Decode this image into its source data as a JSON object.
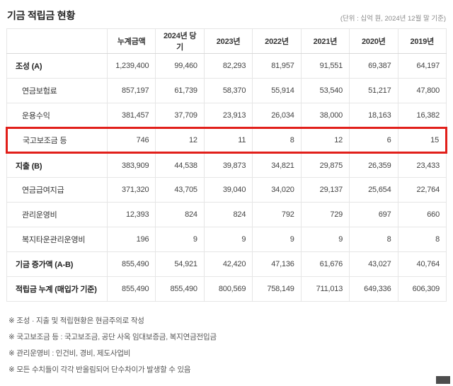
{
  "page": {
    "title": "기금 적립금 현황",
    "unit_note": "(단위 : 십억 원, 2024년 12월 말 기준)",
    "highlight_color": "#e11f1a"
  },
  "table": {
    "columns": [
      "",
      "누계금액",
      "2024년 당기",
      "2023년",
      "2022년",
      "2021년",
      "2020년",
      "2019년"
    ],
    "rows": [
      {
        "label": "조성 (A)",
        "style": "section",
        "highlighted": false,
        "values": [
          "1,239,400",
          "99,460",
          "82,293",
          "81,957",
          "91,551",
          "69,387",
          "64,197"
        ]
      },
      {
        "label": "연금보험료",
        "style": "sub",
        "highlighted": false,
        "values": [
          "857,197",
          "61,739",
          "58,370",
          "55,914",
          "53,540",
          "51,217",
          "47,800"
        ]
      },
      {
        "label": "운용수익",
        "style": "sub",
        "highlighted": false,
        "values": [
          "381,457",
          "37,709",
          "23,913",
          "26,034",
          "38,000",
          "18,163",
          "16,382"
        ]
      },
      {
        "label": "국고보조금 등",
        "style": "sub",
        "highlighted": true,
        "values": [
          "746",
          "12",
          "11",
          "8",
          "12",
          "6",
          "15"
        ]
      },
      {
        "label": "지출 (B)",
        "style": "section",
        "highlighted": false,
        "values": [
          "383,909",
          "44,538",
          "39,873",
          "34,821",
          "29,875",
          "26,359",
          "23,433"
        ]
      },
      {
        "label": "연금급여지급",
        "style": "sub",
        "highlighted": false,
        "values": [
          "371,320",
          "43,705",
          "39,040",
          "34,020",
          "29,137",
          "25,654",
          "22,764"
        ]
      },
      {
        "label": "관리운영비",
        "style": "sub",
        "highlighted": false,
        "values": [
          "12,393",
          "824",
          "824",
          "792",
          "729",
          "697",
          "660"
        ]
      },
      {
        "label": "복지타운관리운영비",
        "style": "sub",
        "highlighted": false,
        "values": [
          "196",
          "9",
          "9",
          "9",
          "9",
          "8",
          "8"
        ]
      },
      {
        "label": "기금 증가액 (A-B)",
        "style": "total",
        "highlighted": false,
        "values": [
          "855,490",
          "54,921",
          "42,420",
          "47,136",
          "61,676",
          "43,027",
          "40,764"
        ]
      },
      {
        "label": "적립금 누계 (매입가 기준)",
        "style": "total",
        "highlighted": false,
        "values": [
          "855,490",
          "855,490",
          "800,569",
          "758,149",
          "711,013",
          "649,336",
          "606,309"
        ]
      }
    ]
  },
  "footnotes": [
    "※ 조성 · 지출 및 적립현황은 현금주의로 작성",
    "※ 국고보조금 등 : 국고보조금, 공단 사옥 임대보증금, 복지연금전입금",
    "※ 관리운영비 : 인건비, 경비, 제도사업비",
    "※ 모든 수치들이 각각 반올림되어 단수차이가 발생할 수 있음"
  ]
}
